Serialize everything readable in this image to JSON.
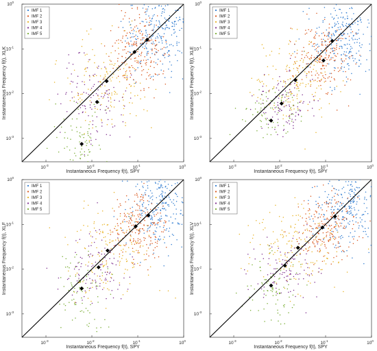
{
  "chart_data": [
    {
      "type": "scatter",
      "xlabel": "Instantaneous Frequency f(t), SPY",
      "ylabel": "Instantaneous Frequency f(t), XLK",
      "xscale": "log",
      "yscale": "log",
      "xlim": [
        0.0003,
        1
      ],
      "ylim": [
        0.0003,
        1
      ],
      "x_ticks": [
        {
          "e": "-3",
          "v": 0.001
        },
        {
          "e": "-2",
          "v": 0.01
        },
        {
          "e": "-1",
          "v": 0.1
        },
        {
          "e": "0",
          "v": 1
        }
      ],
      "y_ticks": [
        {
          "e": "-3",
          "v": 0.001
        },
        {
          "e": "-2",
          "v": 0.01
        },
        {
          "e": "-1",
          "v": 0.1
        },
        {
          "e": "0",
          "v": 1
        }
      ],
      "legend": {
        "position": "top-left",
        "entries": [
          "IMF 1",
          "IMF 2",
          "IMF 3",
          "IMF 4",
          "IMF 5"
        ]
      },
      "series": [
        {
          "name": "IMF 1",
          "center": [
            0.28,
            0.25
          ],
          "spread": [
            0.35,
            0.45
          ],
          "count": 260
        },
        {
          "name": "IMF 2",
          "center": [
            0.1,
            0.09
          ],
          "spread": [
            0.3,
            0.4
          ],
          "count": 200
        },
        {
          "name": "IMF 3",
          "center": [
            0.022,
            0.018
          ],
          "spread": [
            0.45,
            0.5
          ],
          "count": 170
        },
        {
          "name": "IMF 4",
          "center": [
            0.012,
            0.008
          ],
          "spread": [
            0.35,
            0.45
          ],
          "count": 110
        },
        {
          "name": "IMF 5",
          "center": [
            0.006,
            0.0009
          ],
          "spread": [
            0.3,
            0.35
          ],
          "count": 80
        }
      ],
      "means": [
        [
          0.16,
          0.16
        ],
        [
          0.085,
          0.085
        ],
        [
          0.021,
          0.019
        ],
        [
          0.013,
          0.0065
        ],
        [
          0.006,
          0.00075
        ]
      ]
    },
    {
      "type": "scatter",
      "xlabel": "Instantaneous Frequency f(t), SPY",
      "ylabel": "Instantaneous Frequency f(t), XLE",
      "xscale": "log",
      "yscale": "log",
      "xlim": [
        0.0003,
        1
      ],
      "ylim": [
        0.0003,
        1
      ],
      "x_ticks": [
        {
          "e": "-3",
          "v": 0.001
        },
        {
          "e": "-2",
          "v": 0.01
        },
        {
          "e": "-1",
          "v": 0.1
        },
        {
          "e": "0",
          "v": 1
        }
      ],
      "y_ticks": [
        {
          "e": "-3",
          "v": 0.001
        },
        {
          "e": "-2",
          "v": 0.01
        },
        {
          "e": "-1",
          "v": 0.1
        },
        {
          "e": "0",
          "v": 1
        }
      ],
      "legend": {
        "position": "top-left",
        "entries": [
          "IMF 1",
          "IMF 2",
          "IMF 3",
          "IMF 4",
          "IMF 5"
        ]
      },
      "series": [
        {
          "name": "IMF 1",
          "center": [
            0.25,
            0.2
          ],
          "spread": [
            0.35,
            0.5
          ],
          "count": 260
        },
        {
          "name": "IMF 2",
          "center": [
            0.09,
            0.07
          ],
          "spread": [
            0.3,
            0.4
          ],
          "count": 200
        },
        {
          "name": "IMF 3",
          "center": [
            0.025,
            0.02
          ],
          "spread": [
            0.45,
            0.5
          ],
          "count": 170
        },
        {
          "name": "IMF 4",
          "center": [
            0.013,
            0.006
          ],
          "spread": [
            0.35,
            0.35
          ],
          "count": 110
        },
        {
          "name": "IMF 5",
          "center": [
            0.007,
            0.0035
          ],
          "spread": [
            0.3,
            0.3
          ],
          "count": 80
        }
      ],
      "means": [
        [
          0.14,
          0.15
        ],
        [
          0.09,
          0.055
        ],
        [
          0.022,
          0.02
        ],
        [
          0.011,
          0.006
        ],
        [
          0.0065,
          0.0025
        ]
      ]
    },
    {
      "type": "scatter",
      "xlabel": "Instantaneous Frequency f(t), SPY",
      "ylabel": "Instantaneous Frequency f(t), XLF",
      "xscale": "log",
      "yscale": "log",
      "xlim": [
        0.0003,
        1
      ],
      "ylim": [
        0.0003,
        1
      ],
      "x_ticks": [
        {
          "e": "-3",
          "v": 0.001
        },
        {
          "e": "-2",
          "v": 0.01
        },
        {
          "e": "-1",
          "v": 0.1
        },
        {
          "e": "0",
          "v": 1
        }
      ],
      "y_ticks": [
        {
          "e": "-3",
          "v": 0.001
        },
        {
          "e": "-2",
          "v": 0.01
        },
        {
          "e": "-1",
          "v": 0.1
        },
        {
          "e": "0",
          "v": 1
        }
      ],
      "legend": {
        "position": "top-left",
        "entries": [
          "IMF 1",
          "IMF 2",
          "IMF 3",
          "IMF 4",
          "IMF 5"
        ]
      },
      "series": [
        {
          "name": "IMF 1",
          "center": [
            0.3,
            0.22
          ],
          "spread": [
            0.35,
            0.45
          ],
          "count": 260
        },
        {
          "name": "IMF 2",
          "center": [
            0.1,
            0.09
          ],
          "spread": [
            0.3,
            0.4
          ],
          "count": 200
        },
        {
          "name": "IMF 3",
          "center": [
            0.025,
            0.025
          ],
          "spread": [
            0.45,
            0.5
          ],
          "count": 170
        },
        {
          "name": "IMF 4",
          "center": [
            0.013,
            0.011
          ],
          "spread": [
            0.35,
            0.4
          ],
          "count": 110
        },
        {
          "name": "IMF 5",
          "center": [
            0.006,
            0.003
          ],
          "spread": [
            0.3,
            0.5
          ],
          "count": 80
        }
      ],
      "means": [
        [
          0.17,
          0.16
        ],
        [
          0.09,
          0.09
        ],
        [
          0.022,
          0.026
        ],
        [
          0.014,
          0.011
        ],
        [
          0.006,
          0.0037
        ]
      ]
    },
    {
      "type": "scatter",
      "xlabel": "Instantaneous Frequency f(t), SPY",
      "ylabel": "Instantaneous Frequency f(t), XLV",
      "xscale": "log",
      "yscale": "log",
      "xlim": [
        0.0003,
        1
      ],
      "ylim": [
        0.0003,
        1
      ],
      "x_ticks": [
        {
          "e": "-3",
          "v": 0.001
        },
        {
          "e": "-2",
          "v": 0.01
        },
        {
          "e": "-1",
          "v": 0.1
        },
        {
          "e": "0",
          "v": 1
        }
      ],
      "y_ticks": [
        {
          "e": "-3",
          "v": 0.001
        },
        {
          "e": "-2",
          "v": 0.01
        },
        {
          "e": "-1",
          "v": 0.1
        },
        {
          "e": "0",
          "v": 1
        }
      ],
      "legend": {
        "position": "top-left",
        "entries": [
          "IMF 1",
          "IMF 2",
          "IMF 3",
          "IMF 4",
          "IMF 5"
        ]
      },
      "series": [
        {
          "name": "IMF 1",
          "center": [
            0.3,
            0.25
          ],
          "spread": [
            0.35,
            0.45
          ],
          "count": 260
        },
        {
          "name": "IMF 2",
          "center": [
            0.1,
            0.09
          ],
          "spread": [
            0.3,
            0.4
          ],
          "count": 200
        },
        {
          "name": "IMF 3",
          "center": [
            0.025,
            0.025
          ],
          "spread": [
            0.5,
            0.45
          ],
          "count": 170
        },
        {
          "name": "IMF 4",
          "center": [
            0.015,
            0.01
          ],
          "spread": [
            0.4,
            0.35
          ],
          "count": 110
        },
        {
          "name": "IMF 5",
          "center": [
            0.007,
            0.0035
          ],
          "spread": [
            0.3,
            0.4
          ],
          "count": 80
        }
      ],
      "means": [
        [
          0.16,
          0.15
        ],
        [
          0.085,
          0.085
        ],
        [
          0.025,
          0.03
        ],
        [
          0.013,
          0.012
        ],
        [
          0.0065,
          0.0043
        ]
      ]
    }
  ],
  "colors": {
    "imf": [
      "#2f7bd0",
      "#d9541a",
      "#e7b223",
      "#7e2f8e",
      "#77ac30"
    ],
    "diagonal": "#000000",
    "mean_marker": "#000000",
    "axis": "#333333"
  }
}
